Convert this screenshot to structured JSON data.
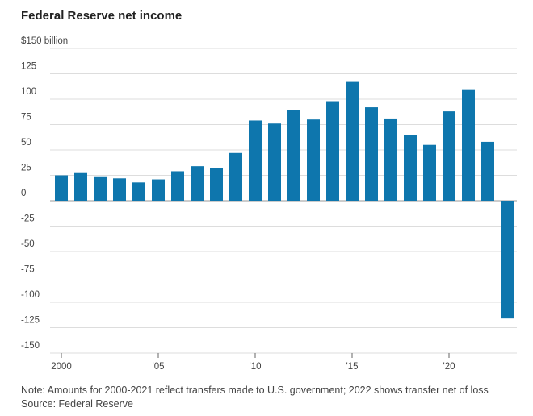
{
  "chart_data": {
    "type": "bar",
    "title": "Federal Reserve net income",
    "x": [
      2000,
      2001,
      2002,
      2003,
      2004,
      2005,
      2006,
      2007,
      2008,
      2009,
      2010,
      2011,
      2012,
      2013,
      2014,
      2015,
      2016,
      2017,
      2018,
      2019,
      2020,
      2021,
      2022,
      2023
    ],
    "values": [
      25,
      28,
      24,
      22,
      18,
      21,
      29,
      34,
      32,
      47,
      79,
      76,
      89,
      80,
      98,
      117,
      92,
      81,
      65,
      55,
      88,
      109,
      58,
      -116
    ],
    "color": "#0e76ad",
    "xlim": [
      1999.5,
      2023.5
    ],
    "xticks": [
      2000,
      {
        "value": 2005,
        "label": "'05"
      },
      {
        "value": 2010,
        "label": "'10"
      },
      {
        "value": 2015,
        "label": "'15"
      },
      {
        "value": 2020,
        "label": "'20"
      }
    ],
    "ylim": [
      -150,
      150
    ],
    "yticks": [
      {
        "value": 150,
        "label": "$150 billion"
      },
      125,
      100,
      75,
      50,
      25,
      0,
      -25,
      -50,
      -75,
      -100,
      -125,
      -150
    ],
    "grid": true,
    "note": "Note: Amounts for 2000-2021 reflect transfers made to U.S. government; 2022 shows transfer net of loss",
    "source": "Source: Federal Reserve"
  }
}
